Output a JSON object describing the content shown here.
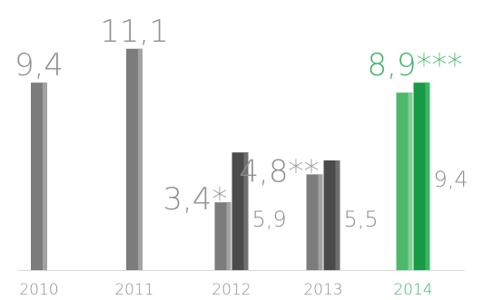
{
  "chart_data": {
    "type": "bar",
    "categories": [
      "2010",
      "2011",
      "2012",
      "2013",
      "2014"
    ],
    "series": [
      {
        "values": [
          9.4,
          11.1,
          3.4,
          4.8,
          8.9
        ],
        "labels": [
          "9,4",
          "11,1",
          "3,4*",
          "4,8**",
          "8,9***"
        ]
      },
      {
        "values": [
          null,
          null,
          5.9,
          5.5,
          9.4
        ],
        "labels": [
          "",
          "",
          "5,9",
          "5,5",
          "9,4"
        ]
      }
    ],
    "highlight_category": "2014",
    "ylim": [
      0,
      11.5
    ],
    "grid": false,
    "colors": {
      "bar_primary": "#7c7c7c",
      "bar_primary_light": "#a2a2a2",
      "bar_secondary": "#4b4b4b",
      "bar_secondary_light": "#6f6f6f",
      "highlight_primary": "#4db86c",
      "highlight_primary_light": "#7fd196",
      "highlight_secondary": "#169a44",
      "highlight_secondary_light": "#3db465",
      "label_gray": "#8f8f8f",
      "label_green": "#3db466",
      "baseline": "#d9d9d9"
    }
  }
}
